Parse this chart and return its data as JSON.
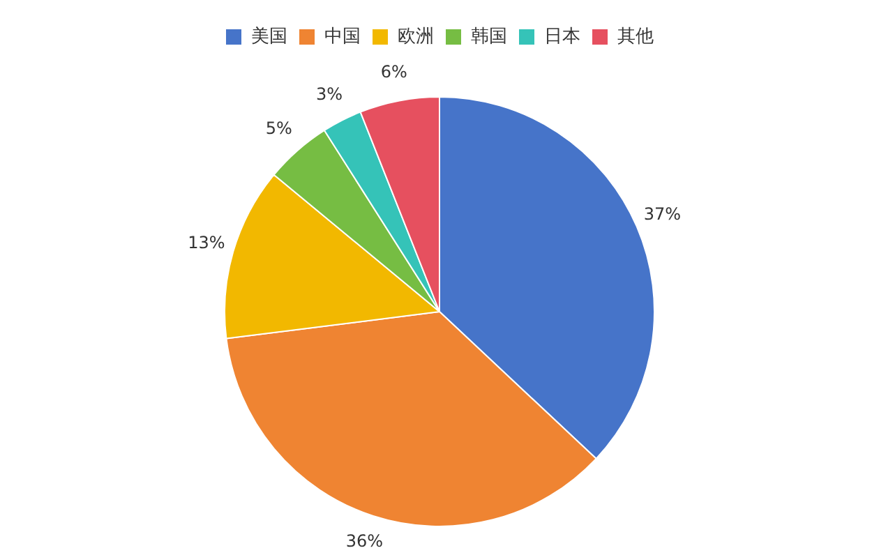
{
  "chart_data": {
    "type": "pie",
    "categories": [
      "美国",
      "中国",
      "欧洲",
      "韩国",
      "日本",
      "其他"
    ],
    "values": [
      37,
      36,
      13,
      5,
      3,
      6
    ],
    "colors": [
      "#4674c9",
      "#ef8432",
      "#f2b800",
      "#76bd43",
      "#35c3b8",
      "#e6505f"
    ],
    "value_labels": [
      "37%",
      "36%",
      "13%",
      "5%",
      "3%",
      "6%"
    ],
    "legend": "top"
  }
}
